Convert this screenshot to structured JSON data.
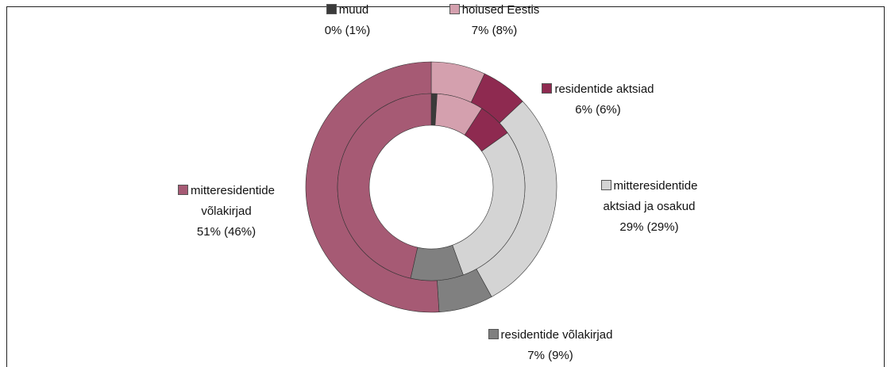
{
  "chart_data": {
    "type": "doughnut",
    "categories": [
      "muud",
      "hoiused Eestis",
      "residentide aktsiad",
      "mitteresidentide aktsiad ja osakud",
      "residentide võlakirjad",
      "mitteresidentide võlakirjad"
    ],
    "colors": [
      "#3a3a3a",
      "#d4a0ae",
      "#8e2a50",
      "#d4d4d4",
      "#808080",
      "#a65a74"
    ],
    "series": [
      {
        "values": [
          0,
          7,
          6,
          29,
          7,
          51
        ],
        "value_labels": [
          "0%",
          "7%",
          "6%",
          "29%",
          "7%",
          "51%"
        ]
      },
      {
        "values": [
          1,
          8,
          6,
          29,
          9,
          46
        ],
        "value_labels": [
          "(1%)",
          "(8%)",
          "(6%)",
          "(29%)",
          "(9%)",
          "(46%)"
        ]
      }
    ]
  }
}
